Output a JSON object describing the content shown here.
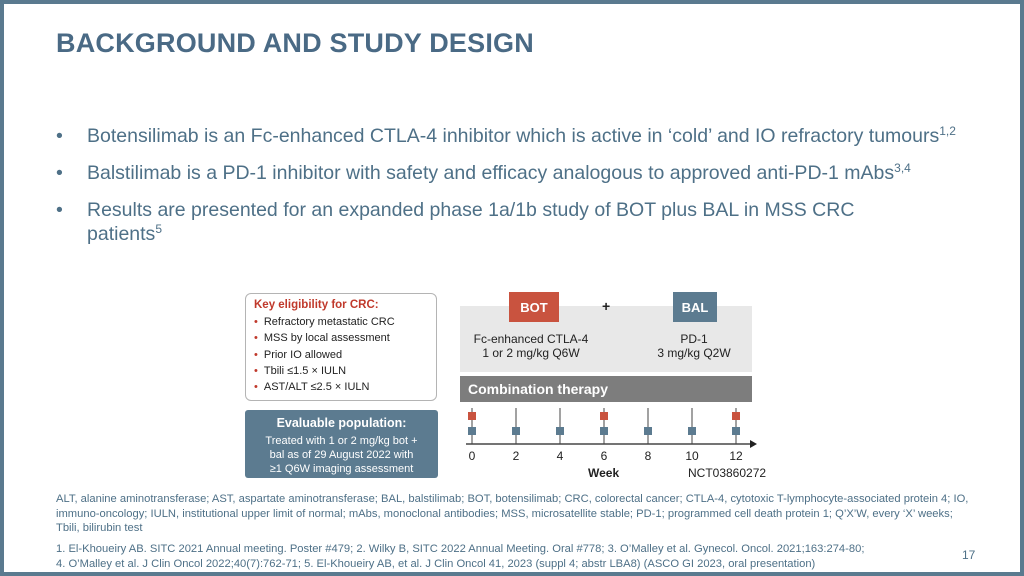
{
  "title": "BACKGROUND AND STUDY DESIGN",
  "bullets": [
    {
      "text": "Botensilimab is an Fc-enhanced CTLA-4 inhibitor which is active in ‘cold’ and IO refractory tumours",
      "sup": "1,2"
    },
    {
      "text": "Balstilimab is a PD-1 inhibitor with safety and efficacy analogous to approved anti-PD-1 mAbs",
      "sup": "3,4"
    },
    {
      "text": "Results are presented for an expanded phase 1a/1b study of BOT plus BAL in MSS CRC patients",
      "sup": "5"
    }
  ],
  "eligibility": {
    "title": "Key eligibility for CRC:",
    "items": [
      "Refractory metastatic CRC",
      "MSS by local assessment",
      "Prior IO allowed",
      "Tbili ≤1.5 × IULN",
      "AST/ALT ≤2.5 × IULN"
    ]
  },
  "evaluable": {
    "title": "Evaluable population:",
    "line1": "Treated with 1 or 2 mg/kg bot +",
    "line2": "bal as of 29 August 2022 with",
    "line3": "≥1 Q6W imaging assessment"
  },
  "design": {
    "bot_label": "BOT",
    "plus": "+",
    "bal_label": "BAL",
    "bot_desc_line1": "Fc-enhanced CTLA-4",
    "bot_desc_line2": "1 or 2 mg/kg Q6W",
    "bal_desc_line1": "PD-1",
    "bal_desc_line2": "3 mg/kg Q2W",
    "combination": "Combination therapy",
    "weeks": [
      "0",
      "2",
      "4",
      "6",
      "8",
      "10",
      "12"
    ],
    "bot_dose_weeks": [
      0,
      6,
      12
    ],
    "week_label": "Week",
    "trial_id": "NCT03860272"
  },
  "abbreviations": "ALT, alanine aminotransferase; AST, aspartate aminotransferase; BAL, balstilimab; BOT, botensilimab; CRC, colorectal cancer; CTLA-4, cytotoxic T-lymphocyte-associated protein 4; IO, immuno-oncology; IULN, institutional upper limit of normal; mAbs, monoclonal antibodies; MSS, microsatellite stable; PD-1; programmed cell death protein 1; Q’X’W, every ‘X’ weeks; Tbili, bilirubin test",
  "references": {
    "line1": "1. El-Khoueiry AB. SITC 2021 Annual meeting. Poster #479; 2. Wilky B, SITC 2022 Annual Meeting. Oral #778; 3. O’Malley et al. Gynecol. Oncol. 2021;163:274-80;",
    "line2": "4. O’Malley et al. J Clin Oncol 2022;40(7):762-71; 5. El-Khoueiry AB, et al. J Clin Oncol 41, 2023 (suppl 4; abstr LBA8) (ASCO GI 2023, oral presentation)"
  },
  "page_number": "17",
  "colors": {
    "bot": "#c9533f",
    "bal": "#5c7b90",
    "title": "#4a6a85"
  }
}
